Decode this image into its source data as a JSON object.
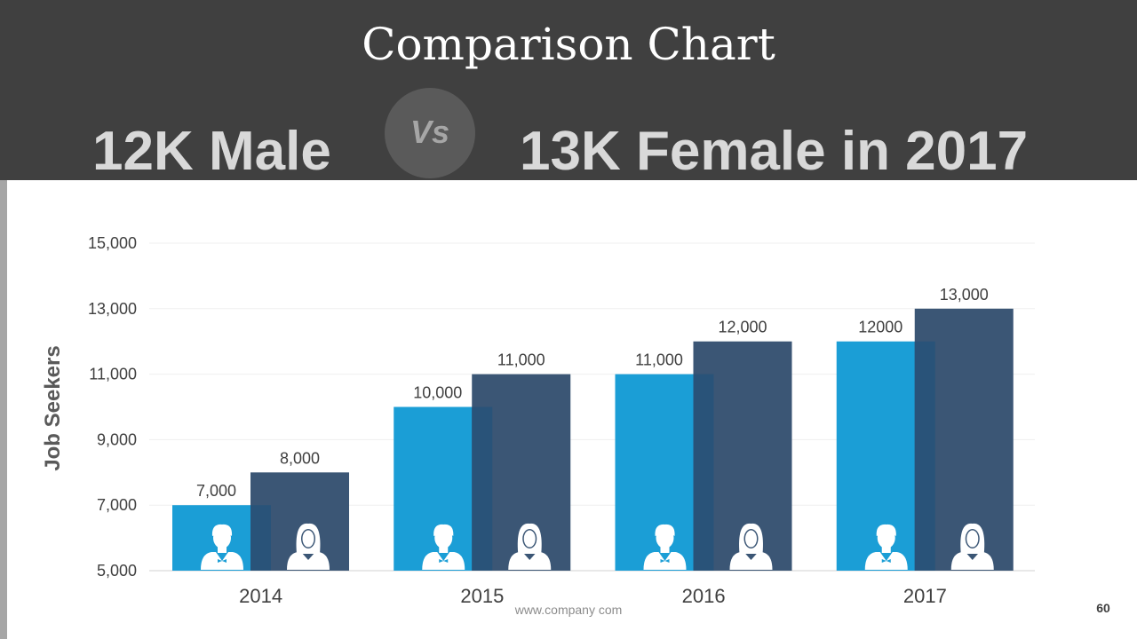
{
  "slide": {
    "title": "Comparison Chart",
    "headline_left": "12K Male",
    "vs_label": "Vs",
    "headline_right": "13K Female in 2017",
    "footer_url": "www.company  com",
    "page_number": "60"
  },
  "colors": {
    "header_bg": "#404040",
    "male": "#1b9ed6",
    "female": "#3b5675",
    "overlap": "#295379",
    "axis_text": "#404040"
  },
  "icons": {
    "male": "male-person-icon",
    "female": "female-person-icon"
  },
  "chart_data": {
    "type": "bar",
    "title": "",
    "xlabel": "",
    "ylabel": "Job Seekers",
    "ylim": [
      5000,
      15000
    ],
    "yticks": [
      5000,
      7000,
      9000,
      11000,
      13000,
      15000
    ],
    "ytick_labels": [
      "5,000",
      "7,000",
      "9,000",
      "11,000",
      "13,000",
      "15,000"
    ],
    "grid": true,
    "categories": [
      "2014",
      "2015",
      "2016",
      "2017"
    ],
    "series": [
      {
        "name": "Male",
        "values": [
          7000,
          10000,
          11000,
          12000
        ],
        "labels": [
          "7,000",
          "10,000",
          "11,000",
          "12000"
        ]
      },
      {
        "name": "Female",
        "values": [
          8000,
          11000,
          12000,
          13000
        ],
        "labels": [
          "8,000",
          "11,000",
          "12,000",
          "13,000"
        ]
      }
    ]
  }
}
